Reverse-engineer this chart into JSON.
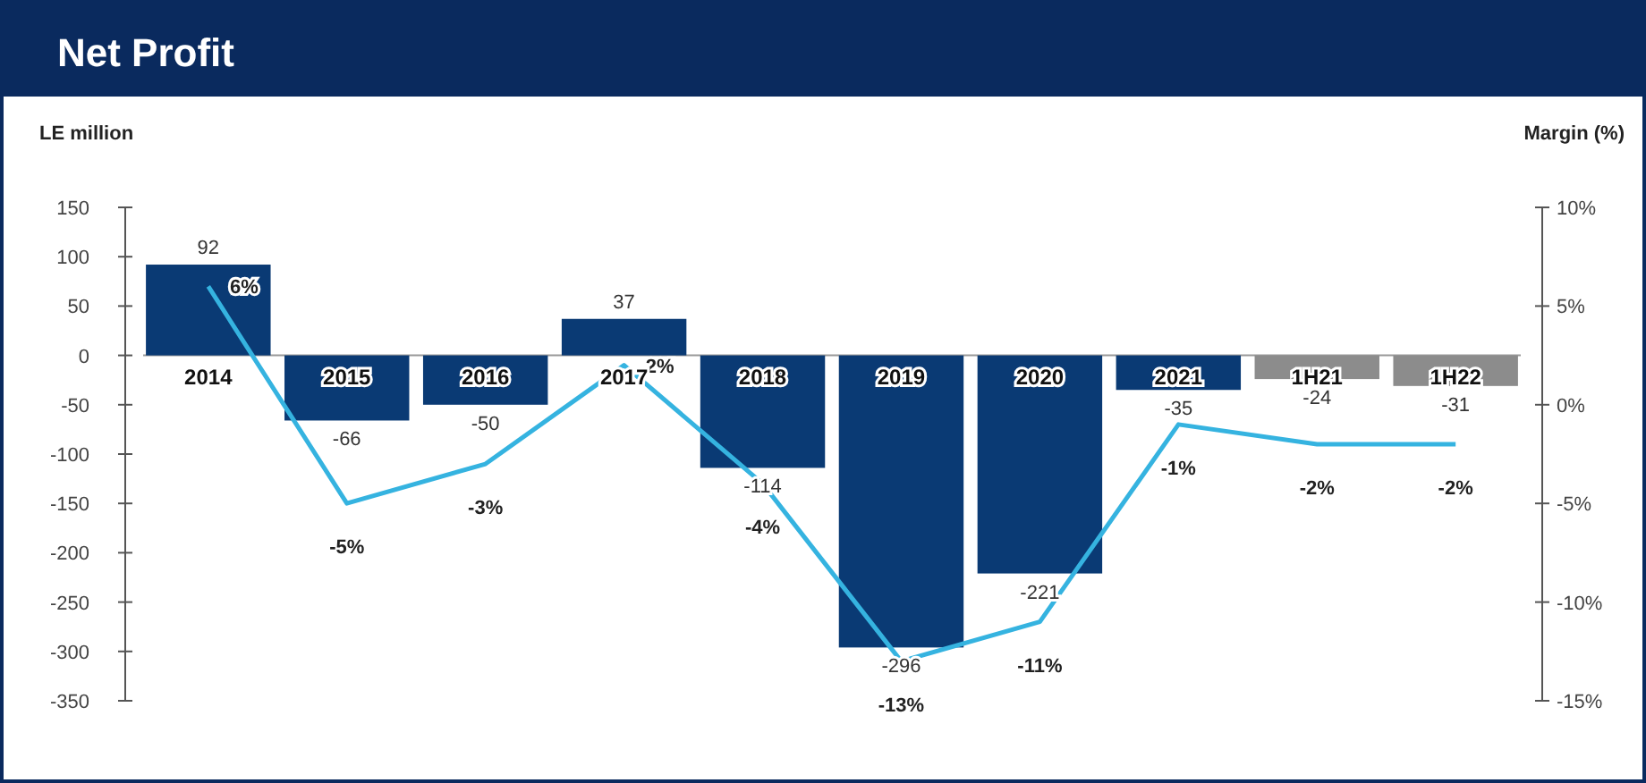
{
  "chart_data": {
    "type": "bar",
    "title": "Net Profit",
    "ylabel": "LE million",
    "y2label": "Margin (%)",
    "categories": [
      "2014",
      "2015",
      "2016",
      "2017",
      "2018",
      "2019",
      "2020",
      "2021",
      "1H21",
      "1H22"
    ],
    "series": [
      {
        "colors": [
          "#0a3a74",
          "#0a3a74",
          "#0a3a74",
          "#0a3a74",
          "#0a3a74",
          "#0a3a74",
          "#0a3a74",
          "#0a3a74",
          "#8c8c8c",
          "#8c8c8c"
        ],
        "values": [
          92,
          -66,
          -50,
          37,
          -114,
          -296,
          -221,
          -35,
          -24,
          -31
        ]
      },
      {
        "type": "line",
        "axis": "y2",
        "color": "#35b3e0",
        "values": [
          6,
          -5,
          -3,
          2,
          -4,
          -13,
          -11,
          -1,
          -2,
          -2
        ],
        "value_labels": [
          "6%",
          "-5%",
          "-3%",
          "2%",
          "-4%",
          "-13%",
          "-11%",
          "-1%",
          "-2%",
          "-2%"
        ]
      }
    ],
    "data_labels": true,
    "ylim": [
      -350,
      150
    ],
    "yticks": [
      -350,
      -300,
      -250,
      -200,
      -150,
      -100,
      -50,
      0,
      50,
      100,
      150
    ],
    "y2lim": [
      -15,
      10
    ],
    "y2ticks": [
      {
        "value": -15,
        "label": "-15%"
      },
      {
        "value": -10,
        "label": "-10%"
      },
      {
        "value": -5,
        "label": "-5%"
      },
      {
        "value": 0,
        "label": "0%"
      },
      {
        "value": 5,
        "label": "5%"
      },
      {
        "value": 10,
        "label": "10%"
      }
    ],
    "grid": false,
    "marker": "none",
    "line_style": "solid"
  }
}
